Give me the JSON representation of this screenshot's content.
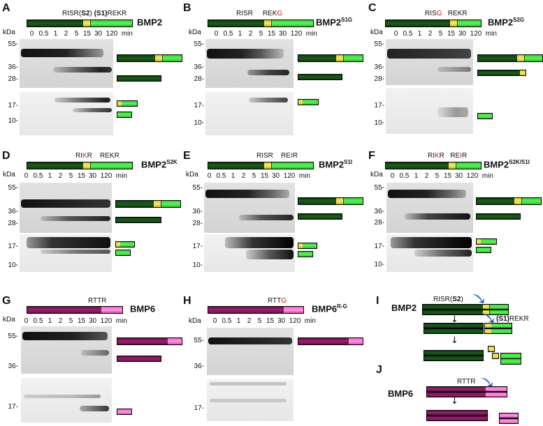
{
  "kda_label": "kDa",
  "min_label": "min",
  "timepoints": [
    "0",
    "0.5",
    "1",
    "2",
    "5",
    "15",
    "30",
    "120"
  ],
  "panels": [
    {
      "letter": "A",
      "name": "BMP2",
      "sup": "",
      "site_left": "RISR(",
      "site_left_b": "S2",
      "site_left_e": ")",
      "site_right_b": "(S1)",
      "site_right": "REKR",
      "mw_top": [
        "55-",
        "36-",
        "28-"
      ],
      "mw_bot": [
        "17-",
        "10-"
      ]
    },
    {
      "letter": "B",
      "name": "BMP2",
      "sup": "S1G",
      "site_left": "RISR",
      "site_right": "REK",
      "site_right_mut": "G",
      "mw_top": [
        "55-",
        "36-",
        "28-"
      ],
      "mw_bot": [
        "17-",
        "10-"
      ]
    },
    {
      "letter": "C",
      "name": "BMP2",
      "sup": "S2G",
      "site_left": "RIS",
      "site_left_mut": "G",
      "site_right": "REKR",
      "mw_top": [
        "55-",
        "36-",
        "28-"
      ],
      "mw_bot": [
        "17-",
        "10-"
      ]
    },
    {
      "letter": "D",
      "name": "BMP2",
      "sup": "S2K",
      "site_left": "RI",
      "site_left_mut": "K",
      "site_left_end": "R",
      "site_right": "REKR",
      "mw_top": [
        "55-",
        "36-",
        "28-"
      ],
      "mw_bot": [
        "17-",
        "10-"
      ]
    },
    {
      "letter": "E",
      "name": "BMP2",
      "sup": "S1I",
      "site_left": "RISR",
      "site_right": "RE",
      "site_right_mut": "I",
      "site_right_end": "R",
      "mw_top": [
        "55-",
        "36-",
        "28-"
      ],
      "mw_bot": [
        "17-",
        "10-"
      ]
    },
    {
      "letter": "F",
      "name": "BMP2",
      "sup": "S2K/S1I",
      "site_left": "RI",
      "site_left_mut": "K",
      "site_left_end": "R",
      "site_right": "RE",
      "site_right_mut": "I",
      "site_right_end": "R",
      "mw_top": [
        "55-",
        "36-",
        "28-"
      ],
      "mw_bot": [
        "17-",
        "10-"
      ]
    },
    {
      "letter": "G",
      "name": "BMP6",
      "sup": "",
      "site_left": "RTTR",
      "mw_top": [
        "55-",
        "36-"
      ],
      "mw_bot": [
        "17-"
      ]
    },
    {
      "letter": "H",
      "name": "BMP6",
      "sup": "R-G",
      "site_left": "RTT",
      "site_left_mut": "G",
      "mw_top": [
        "55-",
        "36-"
      ],
      "mw_bot": [
        "17-"
      ]
    }
  ],
  "scheme_I": {
    "letter": "I",
    "name": "BMP2",
    "site_left": "RISR(",
    "site_left_b": "S2",
    "site_left_e": ")",
    "site_right_b": "(S1)",
    "site_right": "REKR"
  },
  "scheme_J": {
    "letter": "J",
    "name": "BMP6",
    "site_left": "RTTR"
  },
  "colors": {
    "bmp2_prodomain": "#1e5c1e",
    "bmp2_mature": "#4fe04f",
    "linker": "#f4ea6a",
    "bmp6_prodomain": "#9a2270",
    "bmp6_mature": "#ff9ae4",
    "mutation": "#d0161c",
    "cleavage_arrow": "#1a4ed8"
  }
}
